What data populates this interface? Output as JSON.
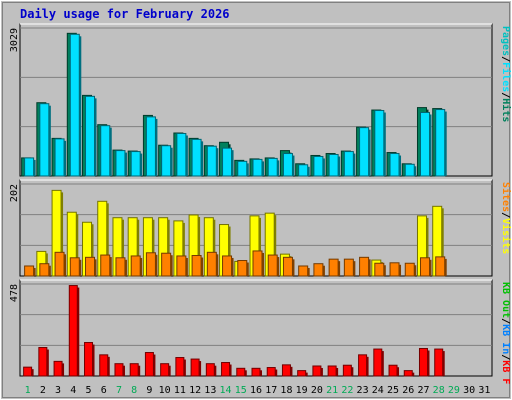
{
  "colors": {
    "background": "#c0c0c0",
    "panel": "#c0c0c0",
    "grid": "#808080",
    "title": "#0000cc",
    "axis_text": "#000000",
    "weekday": "#0000aa",
    "weekend": "#00aa55",
    "hits": "#00805c",
    "files": "#00e0ff",
    "pages": "#00c0c0",
    "visits": "#ffff00",
    "sites": "#ff8000",
    "kbf": "#ff0000",
    "kbin": "#0080ff",
    "kbout": "#00c000"
  },
  "chart_data": {
    "type": "bar",
    "title": "Daily usage for February 2026",
    "categories": [
      "1",
      "2",
      "3",
      "4",
      "5",
      "6",
      "7",
      "8",
      "9",
      "10",
      "11",
      "12",
      "13",
      "14",
      "15",
      "16",
      "17",
      "18",
      "19",
      "20",
      "21",
      "22",
      "23",
      "24",
      "25",
      "26",
      "27",
      "28",
      "29",
      "30",
      "31"
    ],
    "weekend_days": [
      "1",
      "7",
      "8",
      "14",
      "15",
      "21",
      "22",
      "28",
      "29"
    ],
    "panels": [
      {
        "name": "hits-files-pages",
        "ymax_label": "3029",
        "ymax": 3029,
        "legend": [
          {
            "label": "Hits",
            "color_key": "hits"
          },
          {
            "label": "/",
            "color_key": "axis_text"
          },
          {
            "label": "Files",
            "color_key": "files"
          },
          {
            "label": "/",
            "color_key": "axis_text"
          },
          {
            "label": "Pages",
            "color_key": "pages"
          }
        ],
        "series": [
          {
            "name": "Hits",
            "color_key": "hits",
            "values": [
              370,
              1500,
              770,
              2920,
              1650,
              1050,
              530,
              510,
              1240,
              630,
              880,
              770,
              620,
              690,
              320,
              350,
              370,
              520,
              250,
              420,
              460,
              510,
              1000,
              1350,
              480,
              250,
              1400,
              1380,
              0,
              0,
              0
            ]
          },
          {
            "name": "Files",
            "color_key": "files",
            "values": [
              370,
              1480,
              760,
              2900,
              1630,
              1030,
              520,
              500,
              1210,
              620,
              870,
              750,
              610,
              570,
              300,
              340,
              360,
              460,
              230,
              400,
              440,
              500,
              990,
              1340,
              460,
              240,
              1300,
              1360,
              0,
              0,
              0
            ]
          }
        ]
      },
      {
        "name": "visits-sites",
        "ymax_label": "202",
        "ymax": 202,
        "legend": [
          {
            "label": "Visits",
            "color_key": "visits"
          },
          {
            "label": "/",
            "color_key": "axis_text"
          },
          {
            "label": "Sites",
            "color_key": "sites"
          }
        ],
        "series": [
          {
            "name": "Visits",
            "color_key": "visits",
            "values": [
              0,
              54,
              188,
              140,
              118,
              164,
              128,
              128,
              128,
              128,
              121,
              134,
              128,
              113,
              32,
              132,
              138,
              48,
              0,
              0,
              0,
              0,
              0,
              35,
              0,
              0,
              132,
              153,
              0,
              0,
              0
            ]
          },
          {
            "name": "Sites",
            "color_key": "sites",
            "values": [
              22,
              27,
              52,
              40,
              41,
              46,
              40,
              44,
              51,
              50,
              44,
              45,
              52,
              44,
              34,
              55,
              46,
              41,
              22,
              27,
              37,
              37,
              41,
              28,
              29,
              28,
              40,
              42,
              0,
              0,
              0
            ]
          }
        ]
      },
      {
        "name": "kbytes",
        "ymax_label": "478",
        "ymax": 478,
        "legend": [
          {
            "label": "KB F",
            "color_key": "kbf"
          },
          {
            "label": "/",
            "color_key": "axis_text"
          },
          {
            "label": "KB In",
            "color_key": "kbin"
          },
          {
            "label": "/",
            "color_key": "axis_text"
          },
          {
            "label": "KB Out",
            "color_key": "kbout"
          }
        ],
        "series": [
          {
            "name": "KB F",
            "color_key": "kbf",
            "values": [
              46,
              148,
              76,
              470,
              174,
              110,
              64,
              64,
              122,
              64,
              96,
              88,
              64,
              70,
              40,
              40,
              44,
              58,
              28,
              52,
              52,
              56,
              110,
              140,
              56,
              28,
              143,
              140,
              0,
              0,
              0
            ]
          }
        ]
      }
    ]
  }
}
